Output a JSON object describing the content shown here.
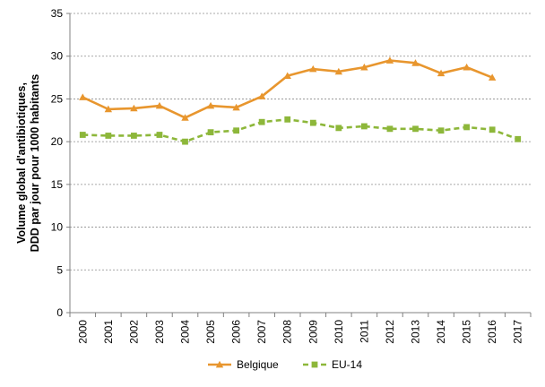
{
  "chart_data": {
    "type": "line",
    "x": [
      "2000",
      "2001",
      "2002",
      "2003",
      "2004",
      "2005",
      "2006",
      "2007",
      "2008",
      "2009",
      "2010",
      "2011",
      "2012",
      "2013",
      "2014",
      "2015",
      "2016",
      "2017"
    ],
    "ylabel_lines": [
      "Volume global d'antibiotiques,",
      "DDD par jour pour 1000 habitants"
    ],
    "ylim": [
      0,
      35
    ],
    "yticks": [
      0,
      5,
      10,
      15,
      20,
      25,
      30,
      35
    ],
    "grid": "horizontal-dashed",
    "legend_position": "bottom",
    "series": [
      {
        "name": "Belgique",
        "color": "#E8962E",
        "marker": "triangle",
        "line_style": "solid",
        "values": [
          25.2,
          23.8,
          23.9,
          24.2,
          22.8,
          24.2,
          24.0,
          25.3,
          27.7,
          28.5,
          28.2,
          28.7,
          29.5,
          29.2,
          28.0,
          28.7,
          27.5,
          null
        ]
      },
      {
        "name": "EU-14",
        "color": "#8DB73A",
        "marker": "square",
        "line_style": "dashed",
        "values": [
          20.8,
          20.7,
          20.7,
          20.8,
          20.0,
          21.1,
          21.3,
          22.3,
          22.6,
          22.2,
          21.6,
          21.8,
          21.5,
          21.5,
          21.3,
          21.7,
          21.4,
          20.3
        ]
      }
    ]
  }
}
